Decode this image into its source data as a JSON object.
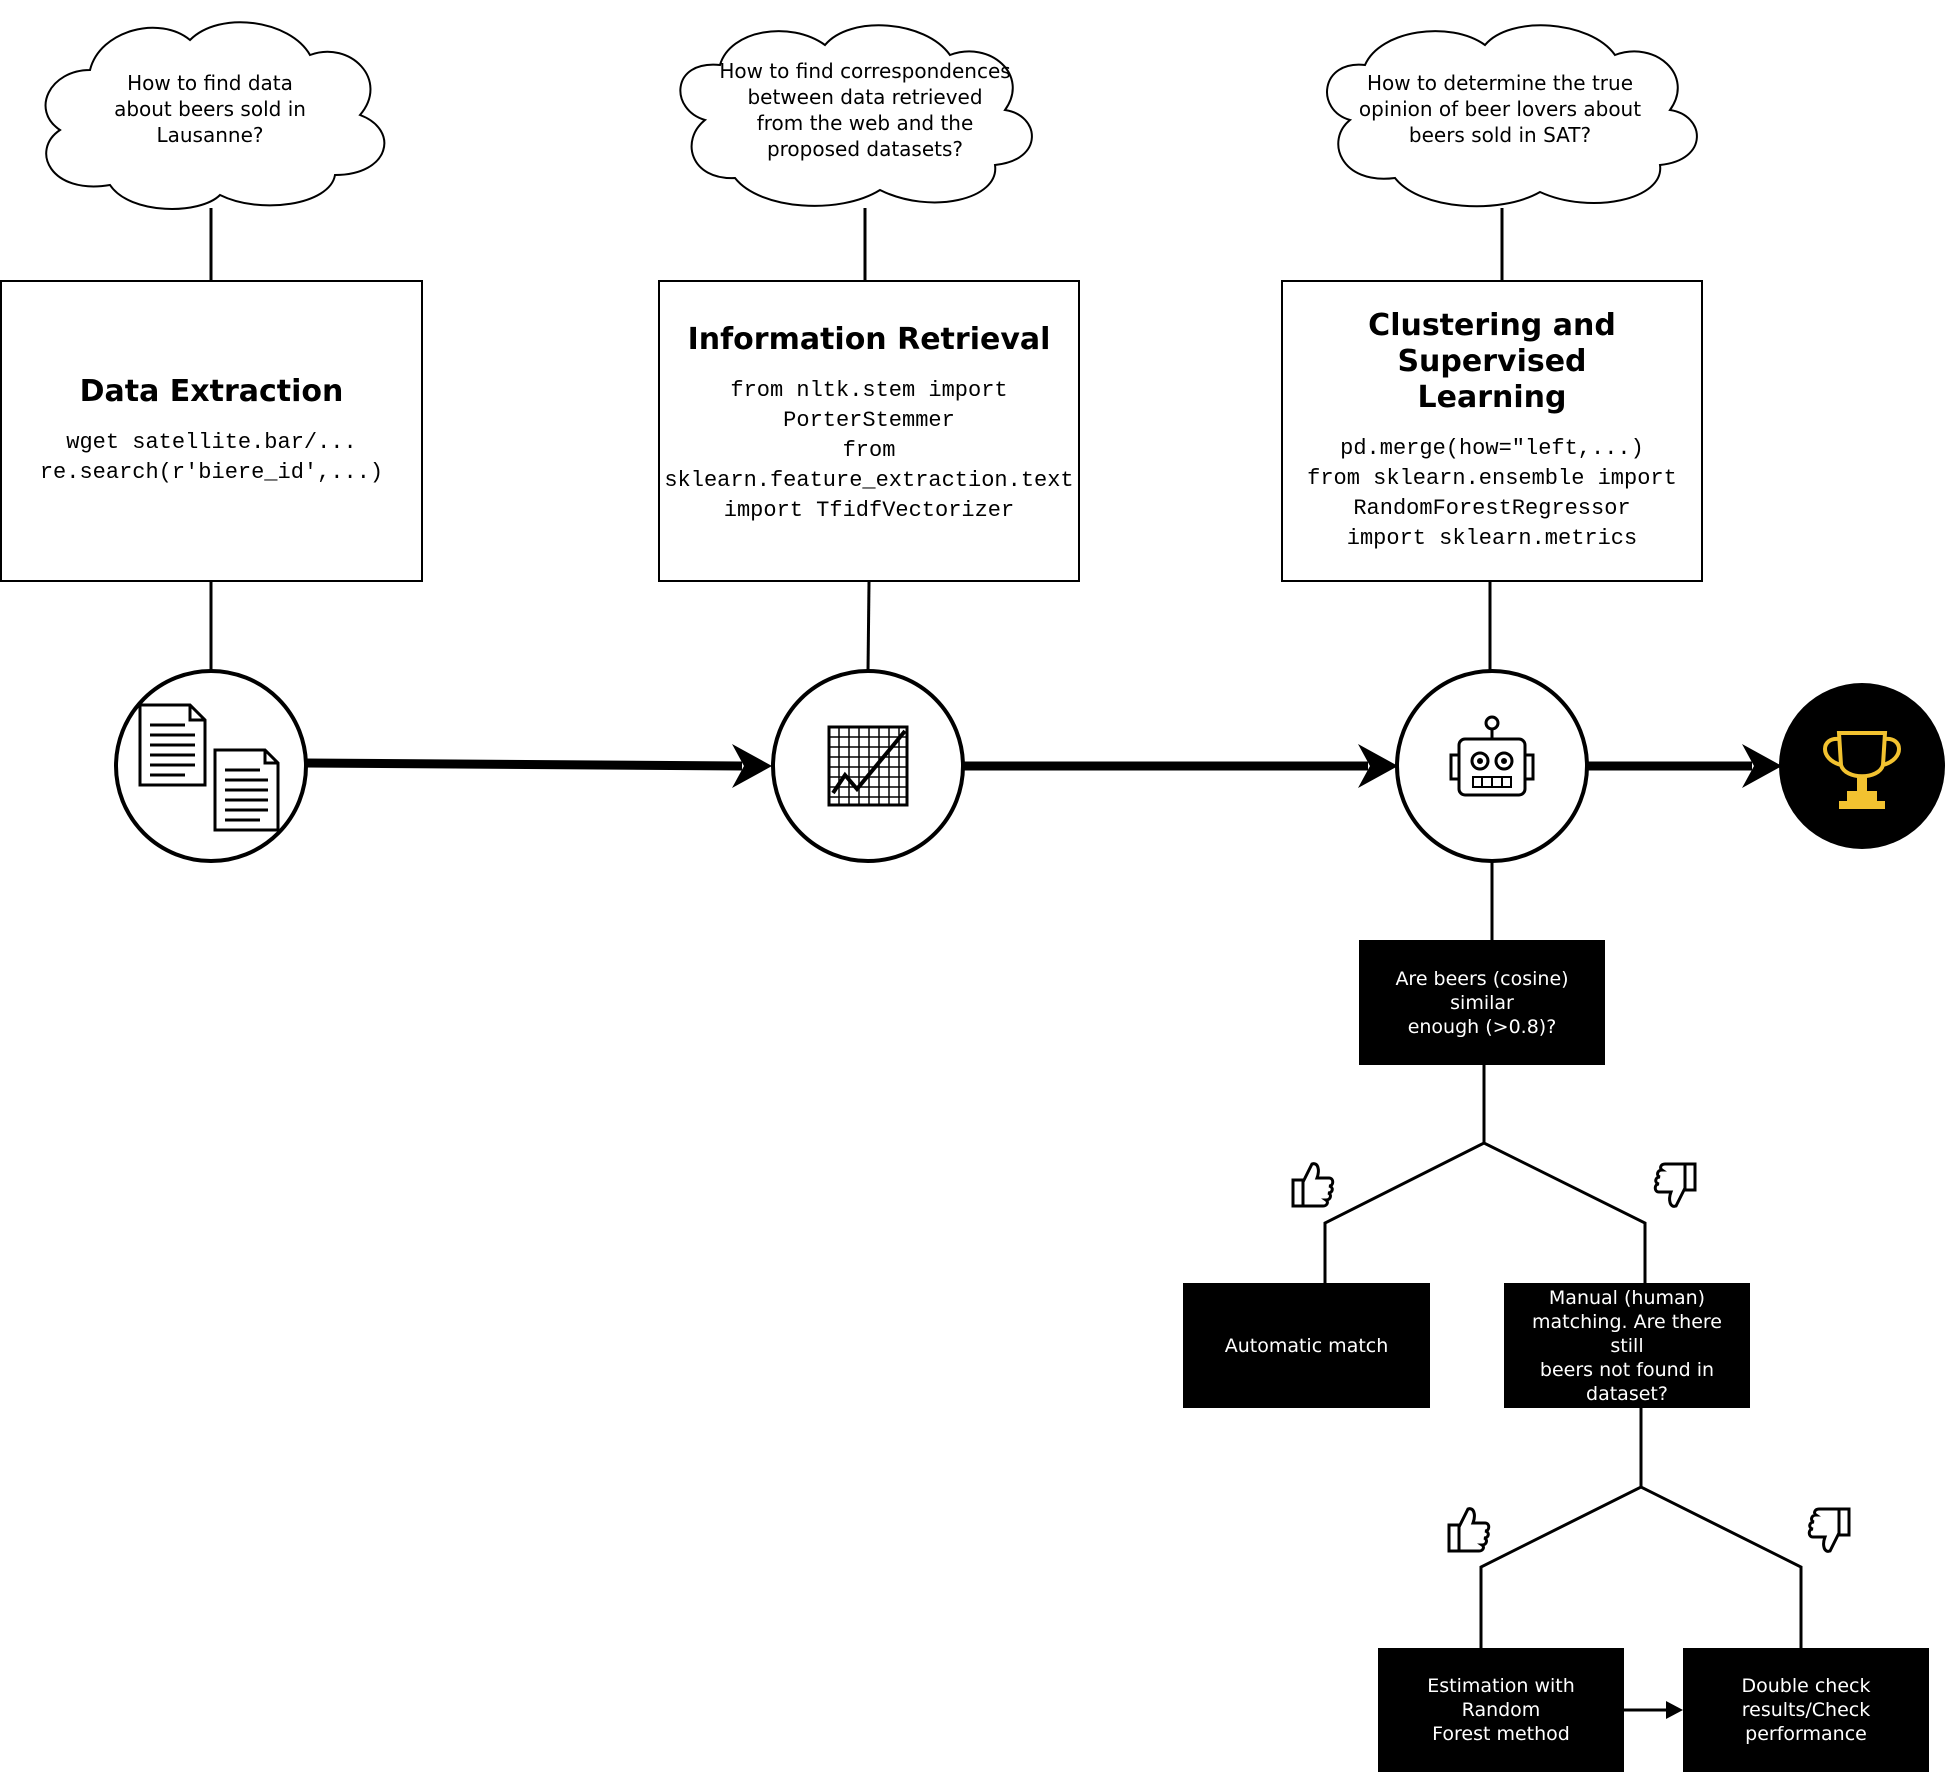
{
  "clouds": [
    {
      "text": "How to find data\nabout beers sold in\nLausanne?"
    },
    {
      "text": "How to find correspondences\nbetween data retrieved\nfrom the web and the\nproposed datasets?"
    },
    {
      "text": "How to determine the true\nopinion of beer lovers about\nbeers sold in SAT?"
    }
  ],
  "stages": [
    {
      "title": "Data Extraction",
      "code": "wget satellite.bar/...\nre.search(r'biere_id',...)",
      "icon": "documents-icon"
    },
    {
      "title": "Information Retrieval",
      "code": "from nltk.stem import\nPorterStemmer\nfrom\nsklearn.feature_extraction.text\nimport TfidfVectorizer",
      "icon": "chart-icon"
    },
    {
      "title": "Clustering and Supervised\nLearning",
      "code": "pd.merge(how=\"left,...)\nfrom sklearn.ensemble import\nRandomForestRegressor\nimport sklearn.metrics",
      "icon": "robot-icon"
    }
  ],
  "goal": {
    "icon": "trophy-icon",
    "accent": "#f2c230"
  },
  "decisions": {
    "similarity": "Are beers (cosine) similar\nenough (>0.8)?",
    "automatic": "Automatic match",
    "manual": "Manual (human)\nmatching. Are there still\nbeers not found in\ndataset?",
    "estimation": "Estimation with Random\nForest method",
    "double_check": "Double check\nresults/Check\nperformance"
  },
  "branch_icons": {
    "yes": "thumbs-up-icon",
    "no": "thumbs-down-icon"
  }
}
